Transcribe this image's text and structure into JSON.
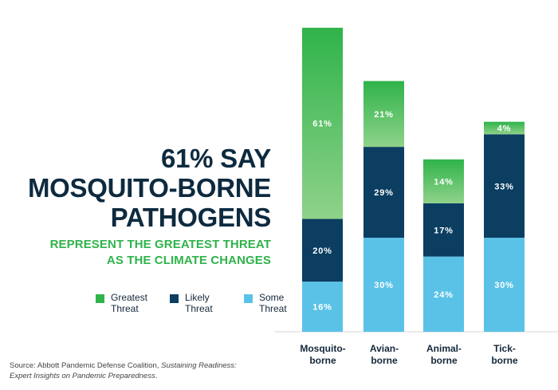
{
  "headline": {
    "line1": "61% SAY",
    "line2": "MOSQUITO-BORNE",
    "line3": "PATHOGENS"
  },
  "subhead": {
    "line1": "REPRESENT THE GREATEST THREAT",
    "line2": "AS THE CLIMATE CHANGES"
  },
  "source": {
    "prefix": "Source: Abbott Pandemic Defense Coalition, ",
    "title": "Sustaining Readiness: Expert Insights on Pandemic Preparedness",
    "suffix": "."
  },
  "colors": {
    "greatest": "#2fb34a",
    "greatest_light": "#8fd28a",
    "likely": "#0b3e61",
    "some": "#5bc2e7"
  },
  "chart_data": {
    "type": "bar",
    "stacked": true,
    "categories": [
      "Mosquito-\nborne",
      "Avian-\nborne",
      "Animal-\nborne",
      "Tick-\nborne"
    ],
    "series": [
      {
        "name": "Some\nThreat",
        "key": "some",
        "values": [
          16,
          30,
          24,
          30
        ],
        "labels": [
          "16%",
          "30%",
          "24%",
          "30%"
        ]
      },
      {
        "name": "Likely\nThreat",
        "key": "likely",
        "values": [
          20,
          29,
          17,
          33
        ],
        "labels": [
          "20%",
          "29%",
          "17%",
          "33%"
        ]
      },
      {
        "name": "Greatest\nThreat",
        "key": "greatest",
        "values": [
          61,
          21,
          14,
          4
        ],
        "labels": [
          "61%",
          "21%",
          "14%",
          "4%"
        ]
      }
    ],
    "legend_order": [
      "greatest",
      "likely",
      "some"
    ],
    "ylim": [
      0,
      97
    ],
    "grid": false,
    "xlabel": "",
    "ylabel": ""
  }
}
